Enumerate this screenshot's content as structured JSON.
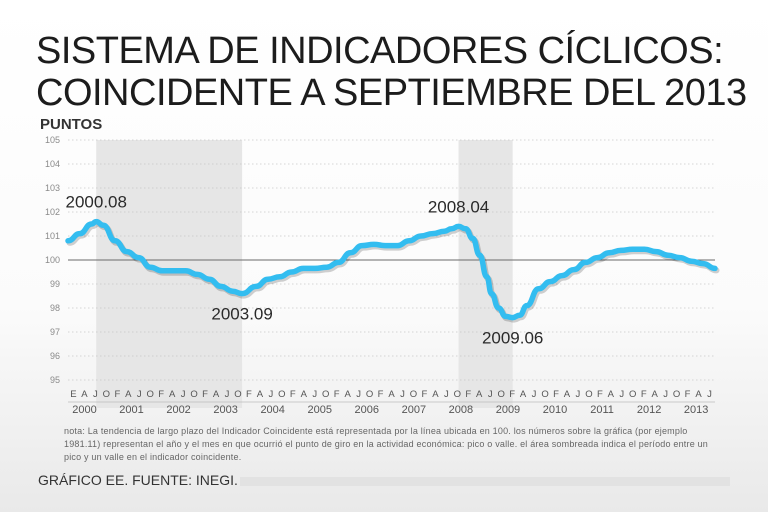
{
  "chart_data": {
    "type": "line",
    "title_line1": "SISTEMA DE INDICADORES CÍCLICOS:",
    "title_line2": "COINCIDENTE A SEPTIEMBRE DEL 2013",
    "ylabel": "PUNTOS",
    "ylim": [
      95,
      105
    ],
    "yticks": [
      "105",
      "104",
      "103",
      "102",
      "101",
      "100",
      "99",
      "98",
      "97",
      "96",
      "95"
    ],
    "reference_line": 100,
    "x_start": 2000.0,
    "x_end": 2013.75,
    "month_letters": [
      "E",
      "A",
      "J",
      "O",
      "F",
      "A",
      "J",
      "O",
      "F",
      "A",
      "J",
      "O",
      "F",
      "A",
      "J",
      "O",
      "F",
      "A",
      "J",
      "O",
      "F",
      "A",
      "J",
      "O",
      "F",
      "A",
      "J",
      "O",
      "F",
      "A",
      "J",
      "O",
      "F",
      "A",
      "J",
      "O",
      "F",
      "A",
      "J",
      "O",
      "F",
      "A",
      "J",
      "O",
      "F",
      "A",
      "J",
      "O",
      "F",
      "A",
      "J",
      "O",
      "F",
      "A",
      "J",
      "O",
      "F",
      "A",
      "J"
    ],
    "year_labels": [
      "2000",
      "2001",
      "2002",
      "2003",
      "2004",
      "2005",
      "2006",
      "2007",
      "2008",
      "2009",
      "2010",
      "2011",
      "2012",
      "2013"
    ],
    "shaded_periods": [
      [
        2000.6,
        2003.7
      ],
      [
        2008.3,
        2009.45
      ]
    ],
    "annotations": [
      {
        "text": "2000.08",
        "x": 2000.6,
        "y": 101.6
      },
      {
        "text": "2003.09",
        "x": 2003.7,
        "y": 98.6
      },
      {
        "text": "2008.04",
        "x": 2008.3,
        "y": 101.4
      },
      {
        "text": "2009.06",
        "x": 2009.45,
        "y": 97.6
      }
    ],
    "series": [
      {
        "name": "Indicador Coincidente",
        "color": "#33bdf0",
        "x": [
          2000.0,
          2000.25,
          2000.5,
          2000.6,
          2000.75,
          2001.0,
          2001.25,
          2001.5,
          2001.75,
          2002.0,
          2002.25,
          2002.5,
          2002.75,
          2003.0,
          2003.25,
          2003.5,
          2003.7,
          2004.0,
          2004.25,
          2004.5,
          2004.75,
          2005.0,
          2005.25,
          2005.5,
          2005.75,
          2006.0,
          2006.25,
          2006.5,
          2006.75,
          2007.0,
          2007.25,
          2007.5,
          2007.75,
          2008.0,
          2008.15,
          2008.3,
          2008.45,
          2008.6,
          2008.75,
          2008.9,
          2009.0,
          2009.15,
          2009.3,
          2009.45,
          2009.6,
          2009.75,
          2010.0,
          2010.25,
          2010.5,
          2010.75,
          2011.0,
          2011.25,
          2011.5,
          2011.75,
          2012.0,
          2012.25,
          2012.5,
          2012.75,
          2013.0,
          2013.25,
          2013.5,
          2013.75
        ],
        "values": [
          100.8,
          101.1,
          101.5,
          101.6,
          101.45,
          100.8,
          100.35,
          100.1,
          99.7,
          99.55,
          99.55,
          99.55,
          99.4,
          99.2,
          98.9,
          98.7,
          98.6,
          98.9,
          99.2,
          99.3,
          99.5,
          99.65,
          99.65,
          99.7,
          99.9,
          100.3,
          100.6,
          100.65,
          100.6,
          100.6,
          100.8,
          101.0,
          101.1,
          101.2,
          101.3,
          101.4,
          101.3,
          100.9,
          100.2,
          99.3,
          98.6,
          98.0,
          97.65,
          97.6,
          97.7,
          98.1,
          98.8,
          99.1,
          99.35,
          99.6,
          99.9,
          100.1,
          100.3,
          100.4,
          100.45,
          100.45,
          100.35,
          100.2,
          100.1,
          99.95,
          99.85,
          99.65
        ]
      }
    ]
  },
  "note": "nota: La tendencia de largo plazo del Indicador Coincidente está representada por la línea ubicada en 100. los números sobre la gráfica (por ejemplo 1981.11) representan el año y el mes en que ocurrió el punto de giro en la actividad económica: pico o valle. el área sombreada indica el período entre un pico y un valle en el indicador coincidente.",
  "source": "GRÁFICO EE. FUENTE: INEGI."
}
